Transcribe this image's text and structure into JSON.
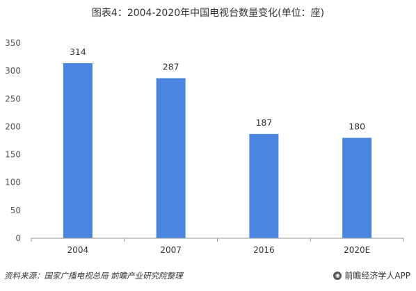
{
  "title": "图表4：2004-2020年中国电视台数量变化(单位：座)",
  "source": "资料来源：国家广播电视总局 前瞻产业研究院整理",
  "brand": "前瞻经济学人APP",
  "colors": {
    "bar": "#4a86e0",
    "axis": "#999999",
    "text": "#333333"
  },
  "chart_data": {
    "type": "bar",
    "categories": [
      "2004",
      "2007",
      "2016",
      "2020E"
    ],
    "values": [
      314,
      287,
      187,
      180
    ],
    "data_labels": [
      "314",
      "287",
      "187",
      "180"
    ],
    "y_ticks": [
      "0",
      "50",
      "100",
      "150",
      "200",
      "250",
      "300",
      "350"
    ],
    "ylim": [
      0,
      350
    ],
    "grid": false,
    "legend": false
  }
}
